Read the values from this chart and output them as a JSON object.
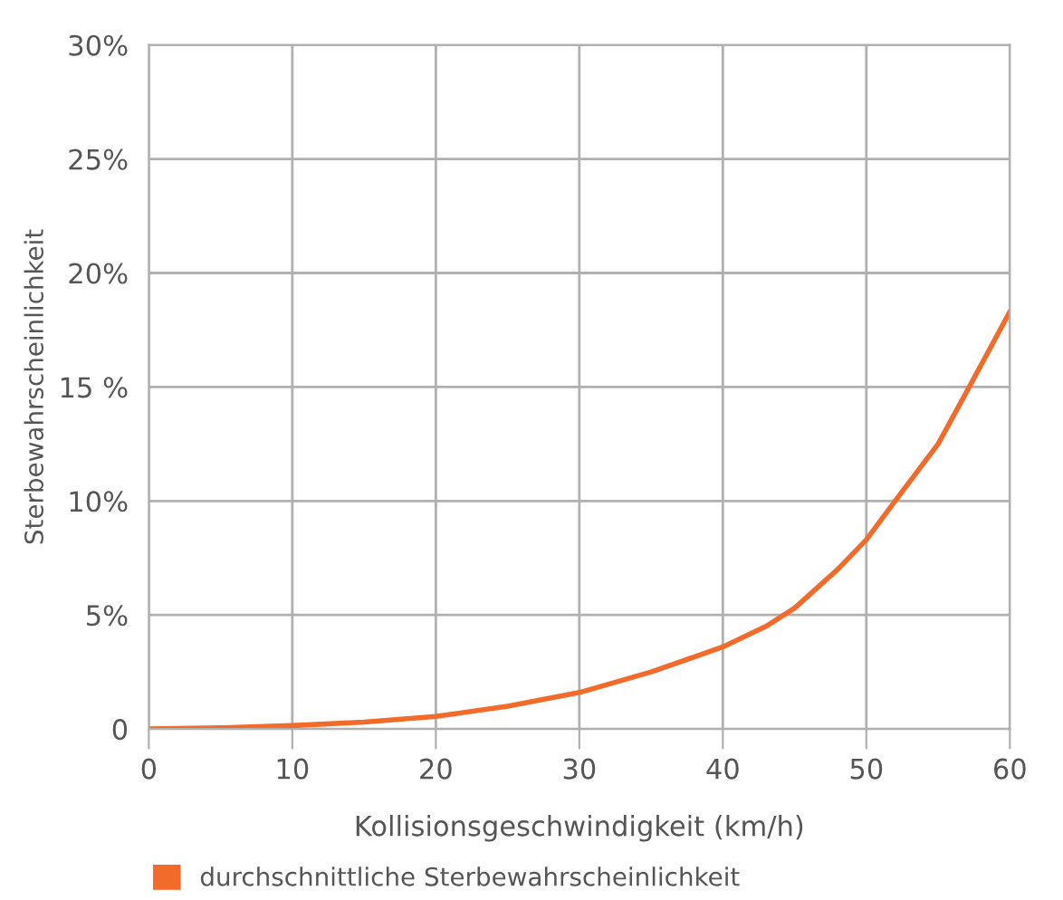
{
  "chart_data": {
    "type": "line",
    "xlabel": "Kollisionsgeschwindigkeit (km/h)",
    "ylabel": "Sterbewahrscheinlichkeit",
    "series": [
      {
        "name": "durchschnittliche Sterbewahrscheinlichkeit",
        "color": "#f26b2a",
        "x": [
          0,
          5,
          10,
          15,
          20,
          25,
          30,
          35,
          40,
          43,
          45,
          48,
          50,
          52,
          55,
          57,
          60
        ],
        "values": [
          0,
          0.05,
          0.15,
          0.3,
          0.55,
          1.0,
          1.6,
          2.5,
          3.6,
          4.5,
          5.3,
          7.0,
          8.3,
          10,
          12.5,
          14.8,
          18.3
        ]
      }
    ],
    "xlim": [
      0,
      60
    ],
    "xticks": [
      0,
      10,
      20,
      30,
      40,
      50,
      60
    ],
    "ylim": [
      0,
      30
    ],
    "yticks": [
      {
        "value": 0,
        "label": "0"
      },
      {
        "value": 5,
        "label": "5%"
      },
      {
        "value": 10,
        "label": "10%"
      },
      {
        "value": 15,
        "label": "15 %"
      },
      {
        "value": 20,
        "label": "20%"
      },
      {
        "value": 25,
        "label": "25%"
      },
      {
        "value": 30,
        "label": "30%"
      }
    ],
    "grid": true,
    "legend": "bottom left",
    "marker": "none",
    "line_style": "solid"
  }
}
